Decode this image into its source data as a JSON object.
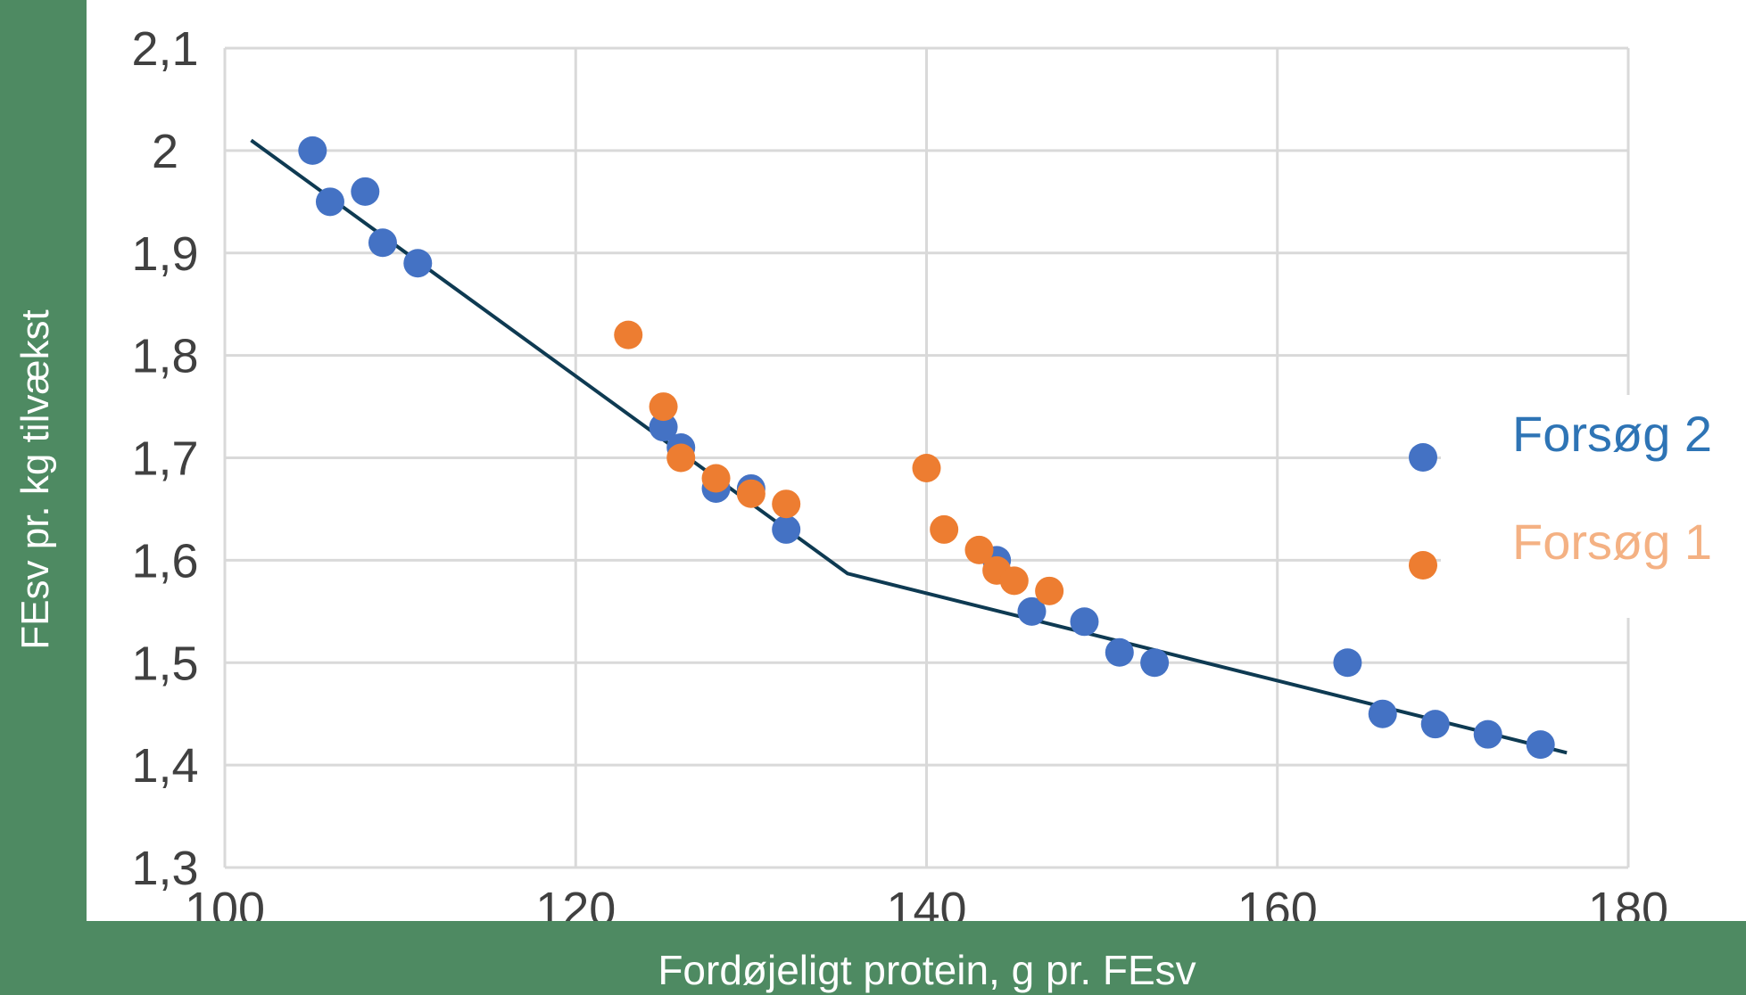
{
  "chart_data": {
    "type": "scatter",
    "title": "",
    "xlabel": "Fordøjeligt protein, g pr. FEsv",
    "ylabel": "FEsv pr. kg tilvækst",
    "xlim": [
      100,
      180
    ],
    "ylim": [
      1.3,
      2.1
    ],
    "x_ticks": [
      "100",
      "120",
      "140",
      "160",
      "180"
    ],
    "y_ticks": [
      "1,3",
      "1,4",
      "1,5",
      "1,6",
      "1,7",
      "1,8",
      "1,9",
      "2",
      "2,1"
    ],
    "grid": true,
    "legend_position": "right",
    "series": [
      {
        "name": "Forsøg 2",
        "color": "#4472c4",
        "points": [
          [
            105,
            2.0
          ],
          [
            106,
            1.95
          ],
          [
            108,
            1.96
          ],
          [
            109,
            1.91
          ],
          [
            111,
            1.89
          ],
          [
            125,
            1.73
          ],
          [
            126,
            1.71
          ],
          [
            128,
            1.67
          ],
          [
            130,
            1.67
          ],
          [
            132,
            1.63
          ],
          [
            144,
            1.6
          ],
          [
            146,
            1.55
          ],
          [
            149,
            1.54
          ],
          [
            151,
            1.51
          ],
          [
            153,
            1.5
          ],
          [
            164,
            1.5
          ],
          [
            166,
            1.45
          ],
          [
            169,
            1.44
          ],
          [
            172,
            1.43
          ],
          [
            175,
            1.42
          ]
        ]
      },
      {
        "name": "Forsøg 1",
        "color": "#ed7d31",
        "points": [
          [
            123,
            1.82
          ],
          [
            125,
            1.75
          ],
          [
            126,
            1.7
          ],
          [
            128,
            1.68
          ],
          [
            130,
            1.665
          ],
          [
            132,
            1.655
          ],
          [
            140,
            1.69
          ],
          [
            141,
            1.63
          ],
          [
            143,
            1.61
          ],
          [
            144,
            1.59
          ],
          [
            145,
            1.58
          ],
          [
            147,
            1.57
          ]
        ]
      }
    ],
    "fit_line": {
      "color": "#0e3a52",
      "points": [
        [
          101.5,
          2.01
        ],
        [
          135.5,
          1.587
        ],
        [
          176.5,
          1.412
        ]
      ]
    },
    "legend_text_colors": [
      "#2e74b5",
      "#f4b183"
    ]
  }
}
